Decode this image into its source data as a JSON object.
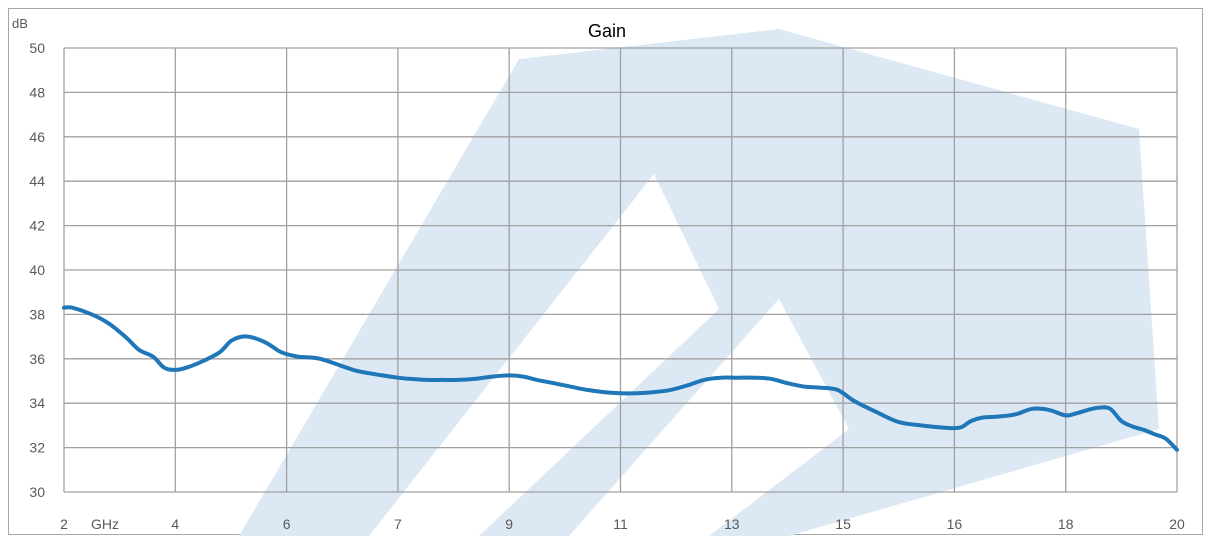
{
  "chart_data": {
    "type": "line",
    "title": "Gain",
    "ylabel": "dB",
    "xlabel": "GHz",
    "ylim": [
      30,
      50
    ],
    "yticks": [
      30,
      32,
      34,
      36,
      38,
      40,
      42,
      44,
      46,
      48,
      50
    ],
    "xtick_labels": [
      "2",
      "4",
      "6",
      "7",
      "9",
      "11",
      "13",
      "15",
      "16",
      "18",
      "20"
    ],
    "grid": true,
    "colors": {
      "line": "#1f77b8",
      "grid": "#a0a0a0",
      "watermark": "#dce9f5"
    },
    "series": [
      {
        "x": [
          2.0,
          2.15,
          2.5,
          2.8,
          3.1,
          3.35,
          3.6,
          3.8,
          4.0,
          4.2,
          4.5,
          4.8,
          5.0,
          5.2,
          5.4,
          5.65,
          5.9,
          6.1,
          6.3,
          6.6,
          6.8,
          7.0,
          7.2,
          7.5,
          7.8,
          8.1,
          8.4,
          8.7,
          9.0,
          9.25,
          9.5,
          9.8,
          10.1,
          10.4,
          10.7,
          11.0,
          11.3,
          11.6,
          11.9,
          12.2,
          12.5,
          12.8,
          13.1,
          13.4,
          13.7,
          14.0,
          14.3,
          14.6,
          14.9,
          15.1,
          15.3,
          15.5,
          15.7,
          15.9,
          16.1,
          16.3,
          16.5,
          16.8,
          17.1,
          17.4,
          17.7,
          18.0,
          18.2,
          18.4,
          18.6,
          18.8,
          19.0,
          19.2,
          19.4,
          19.6,
          19.8,
          20.0
        ],
        "values": [
          38.3,
          38.3,
          38.0,
          37.6,
          37.0,
          36.4,
          36.1,
          35.6,
          35.5,
          35.6,
          35.9,
          36.3,
          36.8,
          37.0,
          36.95,
          36.7,
          36.3,
          36.1,
          36.0,
          35.5,
          35.3,
          35.15,
          35.1,
          35.05,
          35.05,
          35.05,
          35.1,
          35.2,
          35.25,
          35.2,
          35.05,
          34.9,
          34.75,
          34.6,
          34.5,
          34.45,
          34.45,
          34.5,
          34.6,
          34.8,
          35.05,
          35.15,
          35.15,
          35.15,
          35.1,
          34.9,
          34.75,
          34.7,
          34.6,
          34.1,
          33.6,
          33.15,
          33.0,
          32.9,
          32.9,
          33.2,
          33.35,
          33.4,
          33.5,
          33.75,
          33.7,
          33.45,
          33.55,
          33.7,
          33.8,
          33.75,
          33.2,
          32.95,
          32.8,
          32.6,
          32.4,
          31.9
        ]
      }
    ]
  }
}
